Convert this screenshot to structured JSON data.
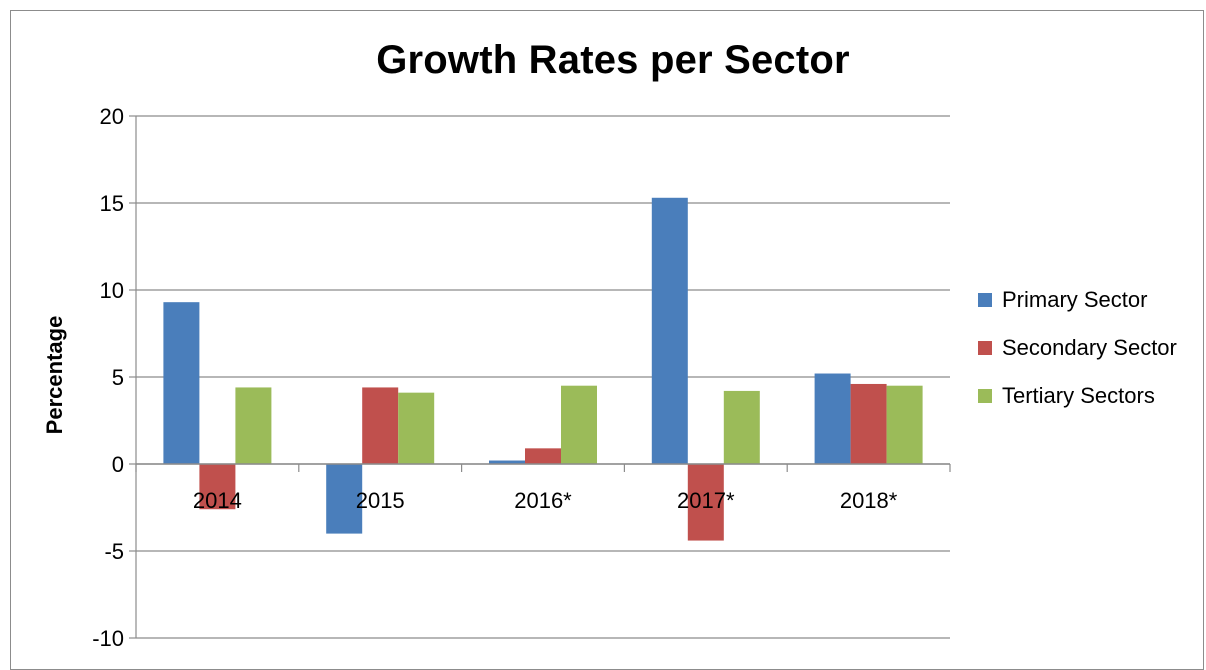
{
  "chart_data": {
    "type": "bar",
    "title": "Growth Rates per Sector",
    "xlabel": "",
    "ylabel": "Percentage",
    "categories": [
      "2014",
      "2015",
      "2016*",
      "2017*",
      "2018*"
    ],
    "ylim": [
      -10,
      20
    ],
    "yticks": [
      20,
      15,
      10,
      5,
      0,
      -5,
      -10
    ],
    "grid": true,
    "legend_position": "right",
    "series": [
      {
        "name": "Primary Sector",
        "color": "#4a7ebb",
        "values": [
          9.3,
          -4.0,
          0.2,
          15.3,
          5.2
        ]
      },
      {
        "name": "Secondary Sector",
        "color": "#c0504d",
        "values": [
          -2.6,
          4.4,
          0.9,
          -4.4,
          4.6
        ]
      },
      {
        "name": "Tertiary Sectors",
        "color": "#9bbb59",
        "values": [
          4.4,
          4.1,
          4.5,
          4.2,
          4.5
        ]
      }
    ]
  }
}
